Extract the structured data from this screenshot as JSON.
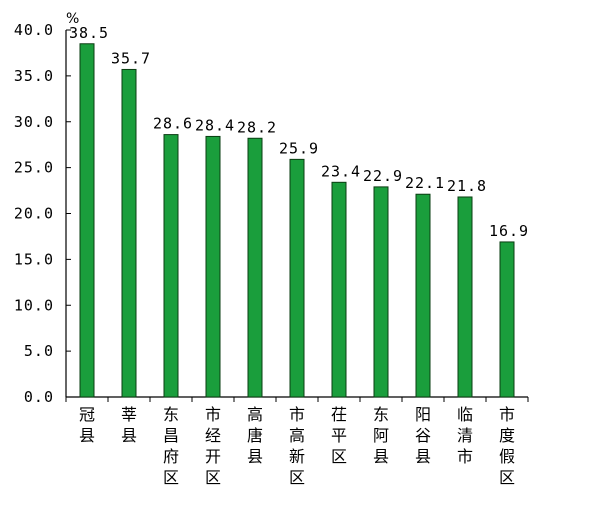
{
  "chart_data": {
    "type": "bar",
    "title": "",
    "xlabel": "",
    "ylabel": "%",
    "ylim": [
      0,
      40
    ],
    "y_ticks": [
      "0.0",
      "5.0",
      "10.0",
      "15.0",
      "20.0",
      "25.0",
      "30.0",
      "35.0",
      "40.0"
    ],
    "categories": [
      "冠县",
      "莘县",
      "东昌府区",
      "市经开区",
      "高唐县",
      "市高新区",
      "茌平区",
      "东阿县",
      "阳谷县",
      "临清市",
      "市度假区"
    ],
    "values": [
      38.5,
      35.7,
      28.6,
      28.4,
      28.2,
      25.9,
      23.4,
      22.9,
      22.1,
      21.8,
      16.9
    ],
    "value_labels": [
      "38.5",
      "35.7",
      "28.6",
      "28.4",
      "28.2",
      "25.9",
      "23.4",
      "22.9",
      "22.1",
      "21.8",
      "16.9"
    ],
    "grid": false,
    "legend": "none",
    "bar_color": "#1a9e3c",
    "bar_edge_color": "#0a3d12",
    "axis_color": "#000000"
  }
}
